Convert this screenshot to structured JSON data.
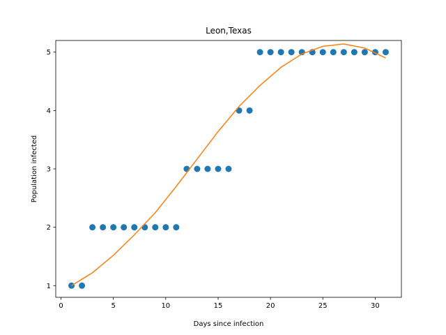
{
  "chart_data": {
    "type": "scatter",
    "title": "Leon,Texas",
    "xlabel": "Days since infection",
    "ylabel": "Population infected",
    "xlim": [
      -0.5,
      32.5
    ],
    "ylim": [
      0.8,
      5.2
    ],
    "x_ticks": [
      0,
      5,
      10,
      15,
      20,
      25,
      30
    ],
    "y_ticks": [
      1,
      2,
      3,
      4,
      5
    ],
    "grid": false,
    "series": [
      {
        "kind": "scatter",
        "color": "#1f77b4",
        "x": [
          1,
          2,
          3,
          4,
          5,
          6,
          7,
          8,
          9,
          10,
          11,
          12,
          13,
          14,
          15,
          16,
          17,
          18,
          19,
          20,
          21,
          22,
          23,
          24,
          25,
          26,
          27,
          28,
          29,
          30,
          31
        ],
        "y": [
          1,
          1,
          2,
          2,
          2,
          2,
          2,
          2,
          2,
          2,
          2,
          3,
          3,
          3,
          3,
          3,
          4,
          4,
          5,
          5,
          5,
          5,
          5,
          5,
          5,
          5,
          5,
          5,
          5,
          5,
          5
        ]
      },
      {
        "kind": "line",
        "color": "#ff7f0e",
        "x": [
          1,
          3,
          5,
          7,
          9,
          11,
          13,
          15,
          17,
          19,
          21,
          23,
          25,
          27,
          29,
          31
        ],
        "y": [
          1.0,
          1.22,
          1.52,
          1.87,
          2.25,
          2.7,
          3.17,
          3.64,
          4.07,
          4.43,
          4.74,
          4.97,
          5.1,
          5.14,
          5.07,
          4.9
        ]
      }
    ]
  }
}
